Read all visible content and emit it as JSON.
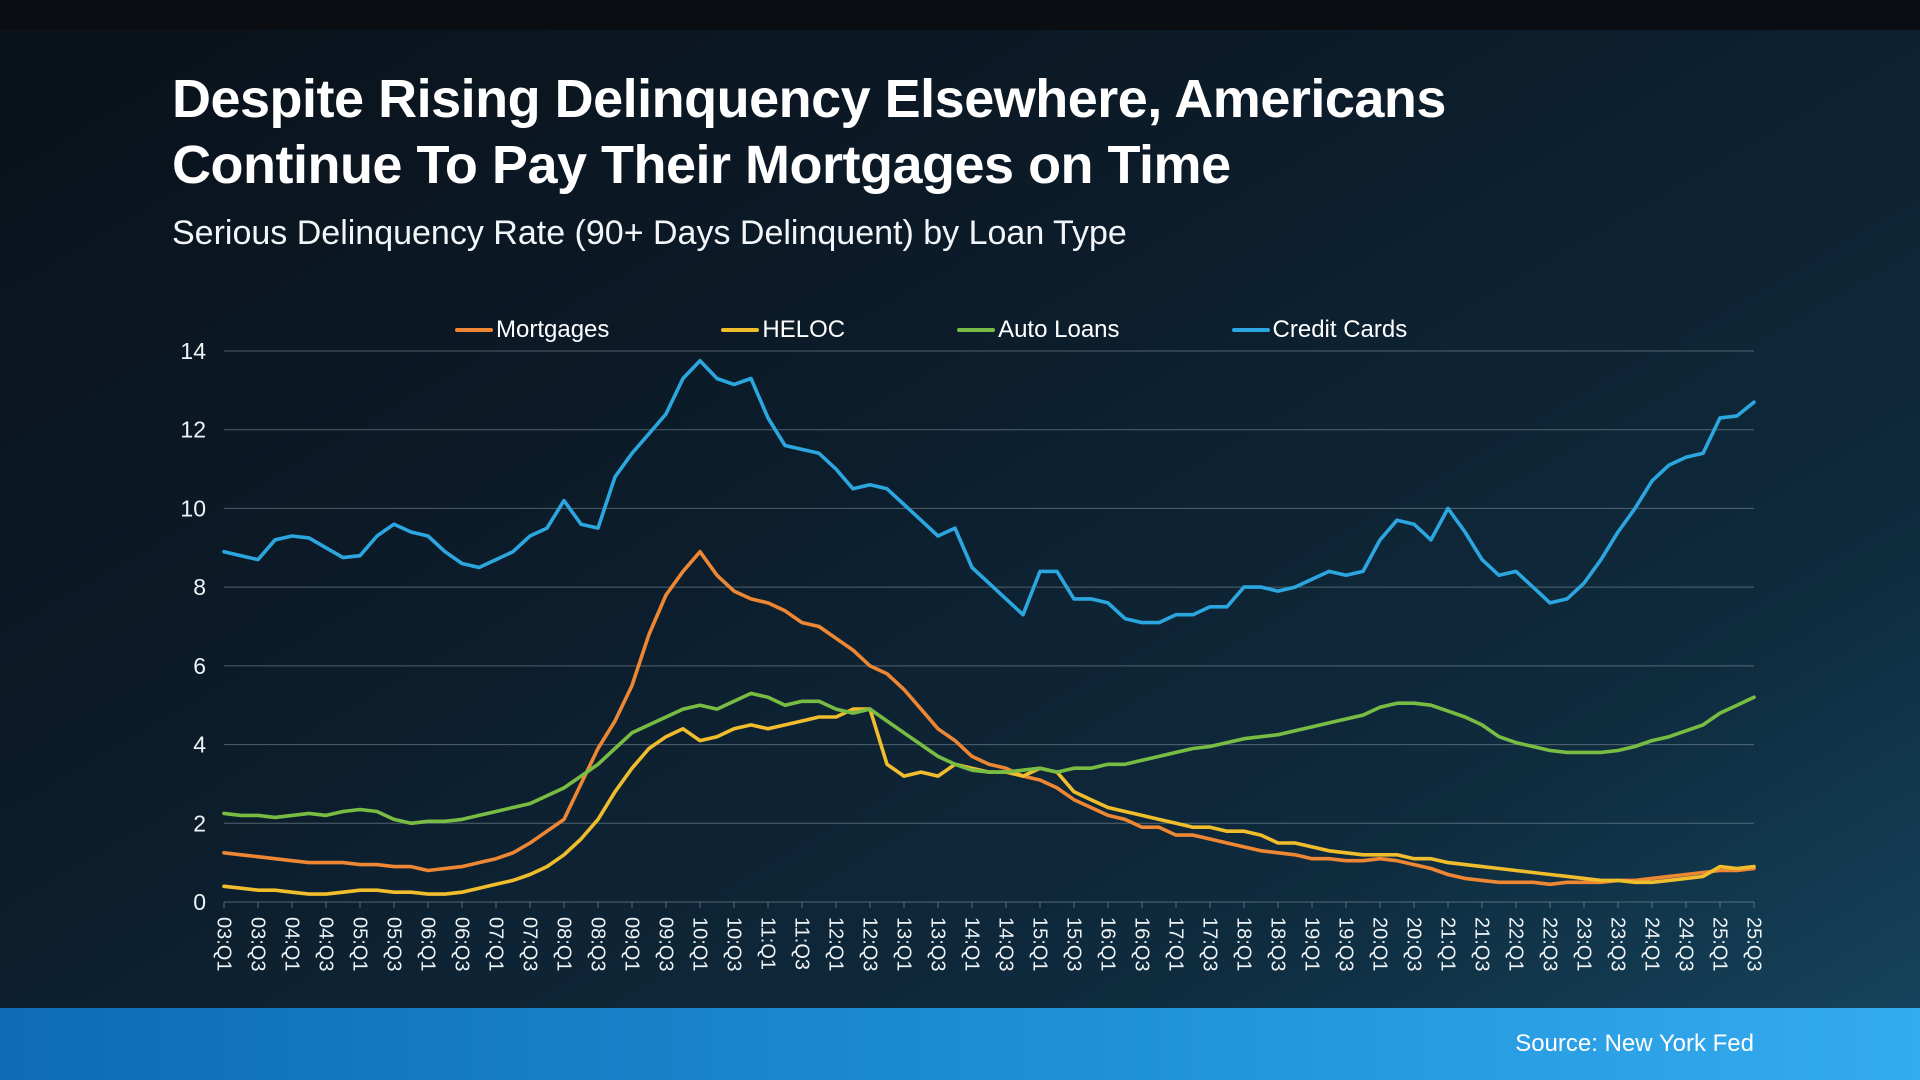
{
  "page": {
    "title_lines": [
      "Despite Rising Delinquency Elsewhere, Americans",
      "Continue To Pay Their Mortgages on Time"
    ],
    "subtitle": "Serious Delinquency Rate (90+ Days Delinquent) by Loan Type",
    "source": "Source: New York Fed"
  },
  "colors": {
    "mortgages": "#ED8733",
    "heloc": "#F0BD2D",
    "auto_loans": "#79BC43",
    "credit_cards": "#2BA6DF",
    "grid": "#94A3AD",
    "footer_bar_left": "#0D6CB3",
    "footer_bar_mid": "#1E8FD6",
    "footer_bar_right": "#35ABEF"
  },
  "chart_data": {
    "type": "line",
    "title": "Serious Delinquency Rate (90+ Days Delinquent) by Loan Type",
    "xlabel": "",
    "ylabel": "",
    "ylim": [
      0,
      14
    ],
    "yticks": [
      0,
      2,
      4,
      6,
      8,
      10,
      12,
      14
    ],
    "grid": true,
    "legend_position": "top",
    "points_per_label": 2,
    "x_labels": [
      "03:Q1",
      "03:Q3",
      "04:Q1",
      "04:Q3",
      "05:Q1",
      "05:Q3",
      "06:Q1",
      "06:Q3",
      "07:Q1",
      "07:Q3",
      "08:Q1",
      "08:Q3",
      "09:Q1",
      "09:Q3",
      "10:Q1",
      "10:Q3",
      "11:Q1",
      "11:Q3",
      "12:Q1",
      "12:Q3",
      "13:Q1",
      "13:Q3",
      "14:Q1",
      "14:Q3",
      "15:Q1",
      "15:Q3",
      "16:Q1",
      "16:Q3",
      "17:Q1",
      "17:Q3",
      "18:Q1",
      "18:Q3",
      "19:Q1",
      "19:Q3",
      "20:Q1",
      "20:Q3",
      "21:Q1",
      "21:Q3",
      "22:Q1",
      "22:Q3",
      "23:Q1",
      "23:Q3",
      "24:Q1",
      "24:Q3",
      "25:Q1",
      "25:Q3"
    ],
    "series": [
      {
        "name": "Mortgages",
        "color": "#ED8733",
        "values": [
          1.25,
          1.2,
          1.15,
          1.1,
          1.05,
          1.0,
          1.0,
          1.0,
          0.95,
          0.95,
          0.9,
          0.9,
          0.8,
          0.85,
          0.9,
          1.0,
          1.1,
          1.25,
          1.5,
          1.8,
          2.1,
          3.0,
          3.9,
          4.6,
          5.5,
          6.8,
          7.8,
          8.4,
          8.9,
          8.3,
          7.9,
          7.7,
          7.6,
          7.4,
          7.1,
          7.0,
          6.7,
          6.4,
          6.0,
          5.8,
          5.4,
          4.9,
          4.4,
          4.1,
          3.7,
          3.5,
          3.4,
          3.2,
          3.1,
          2.9,
          2.6,
          2.4,
          2.2,
          2.1,
          1.9,
          1.9,
          1.7,
          1.7,
          1.6,
          1.5,
          1.4,
          1.3,
          1.25,
          1.2,
          1.1,
          1.1,
          1.05,
          1.05,
          1.1,
          1.05,
          0.95,
          0.85,
          0.7,
          0.6,
          0.55,
          0.5,
          0.5,
          0.5,
          0.45,
          0.5,
          0.5,
          0.5,
          0.55,
          0.55,
          0.6,
          0.65,
          0.7,
          0.75,
          0.8,
          0.8,
          0.85
        ]
      },
      {
        "name": "HELOC",
        "color": "#F0BD2D",
        "values": [
          0.4,
          0.35,
          0.3,
          0.3,
          0.25,
          0.2,
          0.2,
          0.25,
          0.3,
          0.3,
          0.25,
          0.25,
          0.2,
          0.2,
          0.25,
          0.35,
          0.45,
          0.55,
          0.7,
          0.9,
          1.2,
          1.6,
          2.1,
          2.8,
          3.4,
          3.9,
          4.2,
          4.4,
          4.1,
          4.2,
          4.4,
          4.5,
          4.4,
          4.5,
          4.6,
          4.7,
          4.7,
          4.9,
          4.9,
          3.5,
          3.2,
          3.3,
          3.2,
          3.5,
          3.4,
          3.3,
          3.3,
          3.2,
          3.4,
          3.3,
          2.8,
          2.6,
          2.4,
          2.3,
          2.2,
          2.1,
          2.0,
          1.9,
          1.9,
          1.8,
          1.8,
          1.7,
          1.5,
          1.5,
          1.4,
          1.3,
          1.25,
          1.2,
          1.2,
          1.2,
          1.1,
          1.1,
          1.0,
          0.95,
          0.9,
          0.85,
          0.8,
          0.75,
          0.7,
          0.65,
          0.6,
          0.55,
          0.55,
          0.5,
          0.5,
          0.55,
          0.6,
          0.65,
          0.9,
          0.85,
          0.9
        ]
      },
      {
        "name": "Auto Loans",
        "color": "#79BC43",
        "values": [
          2.25,
          2.2,
          2.2,
          2.15,
          2.2,
          2.25,
          2.2,
          2.3,
          2.35,
          2.3,
          2.1,
          2.0,
          2.05,
          2.05,
          2.1,
          2.2,
          2.3,
          2.4,
          2.5,
          2.7,
          2.9,
          3.2,
          3.5,
          3.9,
          4.3,
          4.5,
          4.7,
          4.9,
          5.0,
          4.9,
          5.1,
          5.3,
          5.2,
          5.0,
          5.1,
          5.1,
          4.9,
          4.8,
          4.9,
          4.6,
          4.3,
          4.0,
          3.7,
          3.5,
          3.35,
          3.3,
          3.3,
          3.35,
          3.4,
          3.3,
          3.4,
          3.4,
          3.5,
          3.5,
          3.6,
          3.7,
          3.8,
          3.9,
          3.95,
          4.05,
          4.15,
          4.2,
          4.25,
          4.35,
          4.45,
          4.55,
          4.65,
          4.75,
          4.95,
          5.05,
          5.05,
          5.0,
          4.85,
          4.7,
          4.5,
          4.2,
          4.05,
          3.95,
          3.85,
          3.8,
          3.8,
          3.8,
          3.85,
          3.95,
          4.1,
          4.2,
          4.35,
          4.5,
          4.8,
          5.0,
          5.2
        ]
      },
      {
        "name": "Credit Cards",
        "color": "#2BA6DF",
        "values": [
          8.9,
          8.8,
          8.7,
          9.2,
          9.3,
          9.25,
          9.0,
          8.75,
          8.8,
          9.3,
          9.6,
          9.4,
          9.3,
          8.9,
          8.6,
          8.5,
          8.7,
          8.9,
          9.3,
          9.5,
          10.2,
          9.6,
          9.5,
          10.8,
          11.4,
          11.9,
          12.4,
          13.3,
          13.75,
          13.3,
          13.15,
          13.3,
          12.3,
          11.6,
          11.5,
          11.4,
          11.0,
          10.5,
          10.6,
          10.5,
          10.1,
          9.7,
          9.3,
          9.5,
          8.5,
          8.1,
          7.7,
          7.3,
          8.4,
          8.4,
          7.7,
          7.7,
          7.6,
          7.2,
          7.1,
          7.1,
          7.3,
          7.3,
          7.5,
          7.5,
          8.0,
          8.0,
          7.9,
          8.0,
          8.2,
          8.4,
          8.3,
          8.4,
          9.2,
          9.7,
          9.6,
          9.2,
          10.0,
          9.4,
          8.7,
          8.3,
          8.4,
          8.0,
          7.6,
          7.7,
          8.1,
          8.7,
          9.4,
          10.0,
          10.7,
          11.1,
          11.3,
          11.4,
          12.3,
          12.35,
          12.7
        ]
      }
    ]
  }
}
